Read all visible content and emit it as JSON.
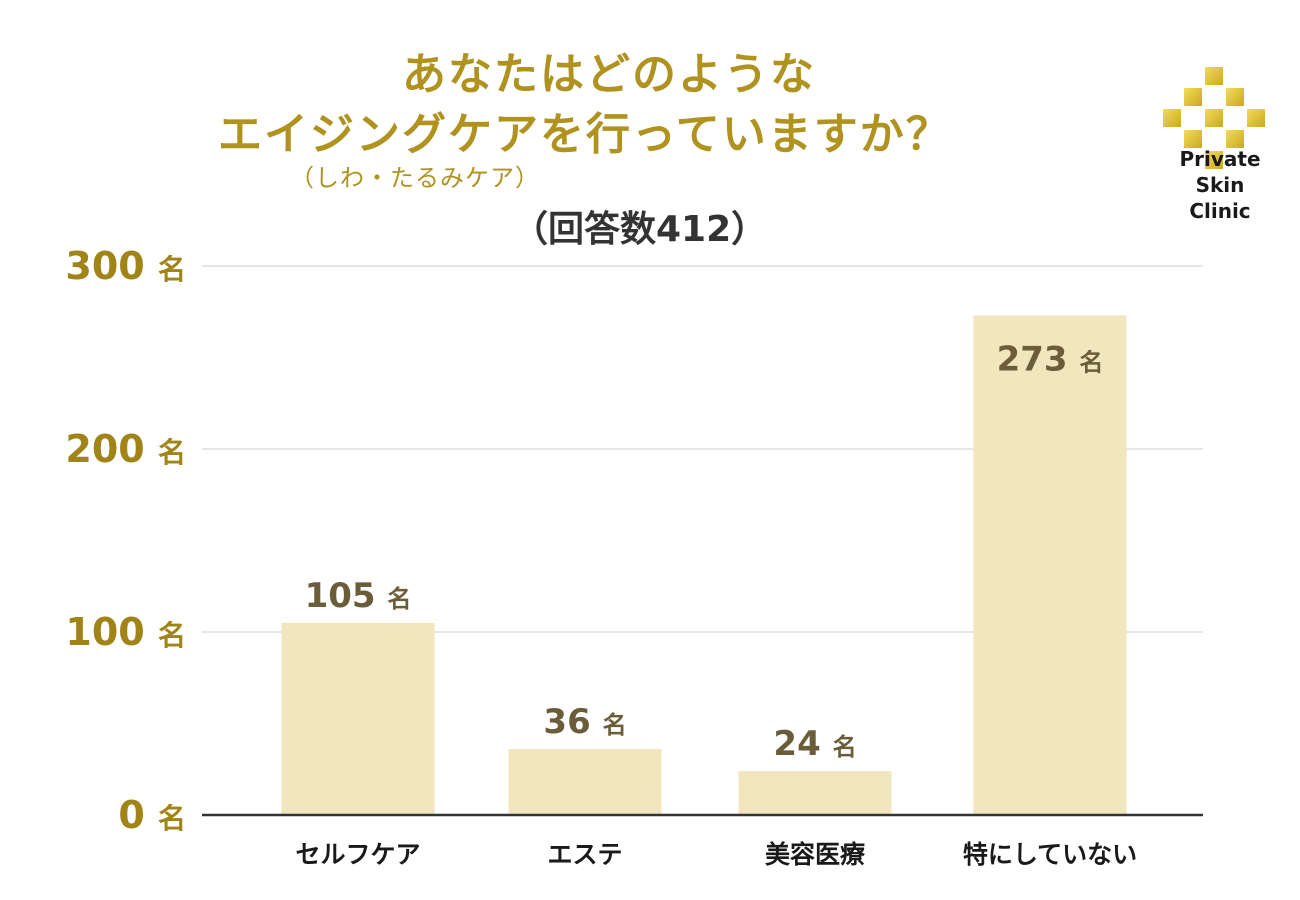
{
  "title": {
    "line1": "あなたはどのような",
    "line2": "エイジングケアを行っていますか？",
    "line3": "（しわ・たるみケア）",
    "line4": "（回答数412）"
  },
  "logo": {
    "line1": "Private",
    "line2": "Skin",
    "line3": "Clinic"
  },
  "chart_data": {
    "type": "bar",
    "categories": [
      "セルフケア",
      "エステ",
      "美容医療",
      "特にしていない"
    ],
    "values": [
      105,
      36,
      24,
      273
    ],
    "unit": "名",
    "yticks": [
      0,
      100,
      200,
      300
    ],
    "ylim": [
      0,
      300
    ],
    "grid": true,
    "bar_color": "#f1e6bd",
    "label_color": "#6b5d3a",
    "ytick_color": "#a08418",
    "title_color": "#b0921f"
  }
}
